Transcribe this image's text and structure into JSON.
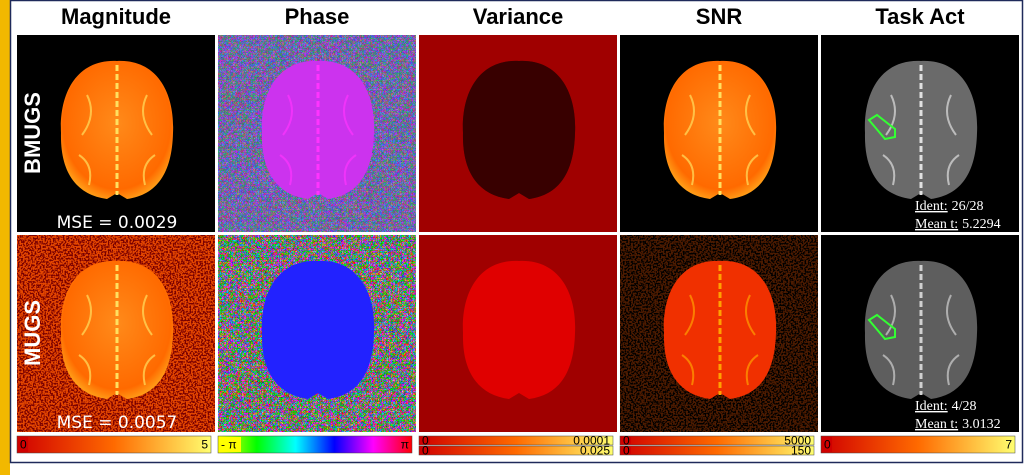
{
  "headers": [
    "Magnitude",
    "Phase",
    "Variance",
    "SNR",
    "Task Act"
  ],
  "rows": [
    {
      "label": "BMUGS",
      "mse": "MSE = 0.0029",
      "ident_label": "Ident:",
      "ident": "26/28",
      "mean_label": "Mean t:",
      "mean": "5.2294"
    },
    {
      "label": "MUGS",
      "mse": "MSE = 0.0057",
      "ident_label": "Ident:",
      "ident": "4/28",
      "mean_label": "Mean t:",
      "mean": "3.0132"
    }
  ],
  "colorbars": [
    {
      "bars": [
        [
          "0",
          "5"
        ]
      ]
    },
    {
      "bars": [
        [
          "- π",
          "π"
        ]
      ]
    },
    {
      "bars": [
        [
          "0",
          "0.0001"
        ],
        [
          "0",
          "0.025"
        ]
      ]
    },
    {
      "bars": [
        [
          "0",
          "5000"
        ],
        [
          "0",
          "150"
        ]
      ]
    },
    {
      "bars": [
        [
          "0",
          "7"
        ]
      ]
    }
  ]
}
